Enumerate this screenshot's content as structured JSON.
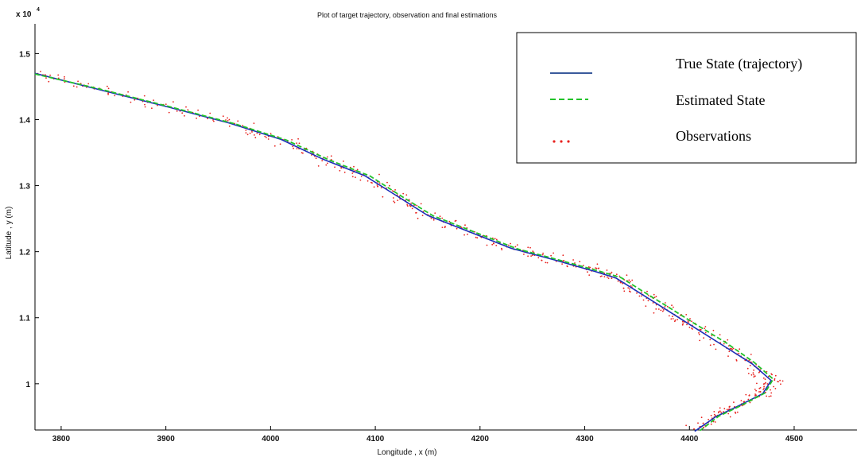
{
  "chart_data": {
    "type": "line",
    "title": "Plot of target trajectory, observation and final estimations",
    "xlabel": "Longitude , x (m)",
    "ylabel": "Latitude , y (m)",
    "y_multiplier_label": "x 10",
    "y_multiplier_exponent": "4",
    "xlim": [
      3775,
      4560
    ],
    "ylim": [
      9300,
      15450
    ],
    "x_ticks": [
      3800,
      3900,
      4000,
      4100,
      4200,
      4300,
      4400,
      4500
    ],
    "x_tick_labels": [
      "3800",
      "3900",
      "4000",
      "4100",
      "4200",
      "4300",
      "4400",
      "4500"
    ],
    "y_ticks": [
      10000,
      11000,
      12000,
      13000,
      14000,
      15000
    ],
    "y_tick_labels": [
      "1",
      "1.1",
      "1.2",
      "1.3",
      "1.4",
      "1.5"
    ],
    "grid": false,
    "legend_position": "top-right",
    "colors": {
      "true_state": "#1c2fb8",
      "estimated_state": "#22c22a",
      "observations": "#e8231f",
      "legend_true_line": "#3a5a9c"
    },
    "series": [
      {
        "name": "True State (trajectory)",
        "style": "solid",
        "x": [
          3775,
          3830,
          3900,
          3960,
          4010,
          4050,
          4090,
          4120,
          4150,
          4190,
          4230,
          4270,
          4310,
          4330,
          4355,
          4380,
          4400,
          4430,
          4460,
          4478,
          4470,
          4445,
          4425,
          4405
        ],
        "y": [
          14700,
          14480,
          14200,
          13950,
          13700,
          13400,
          13150,
          12850,
          12550,
          12300,
          12050,
          11880,
          11700,
          11600,
          11350,
          11100,
          10900,
          10600,
          10300,
          10050,
          9850,
          9650,
          9500,
          9280
        ]
      },
      {
        "name": "Estimated State",
        "style": "dashed",
        "x": [
          3775,
          3835,
          3905,
          3965,
          4015,
          4055,
          4095,
          4125,
          4155,
          4195,
          4235,
          4275,
          4315,
          4335,
          4360,
          4385,
          4405,
          4435,
          4462,
          4480,
          4472,
          4448,
          4428,
          4410
        ],
        "y": [
          14690,
          14470,
          14190,
          13940,
          13690,
          13395,
          13145,
          12840,
          12545,
          12295,
          12045,
          11875,
          11700,
          11605,
          11355,
          11110,
          10910,
          10620,
          10320,
          10070,
          9860,
          9660,
          9510,
          9290
        ]
      },
      {
        "name": "Observations",
        "style": "dotted",
        "note_points_generated_around_true_state": true
      }
    ]
  }
}
